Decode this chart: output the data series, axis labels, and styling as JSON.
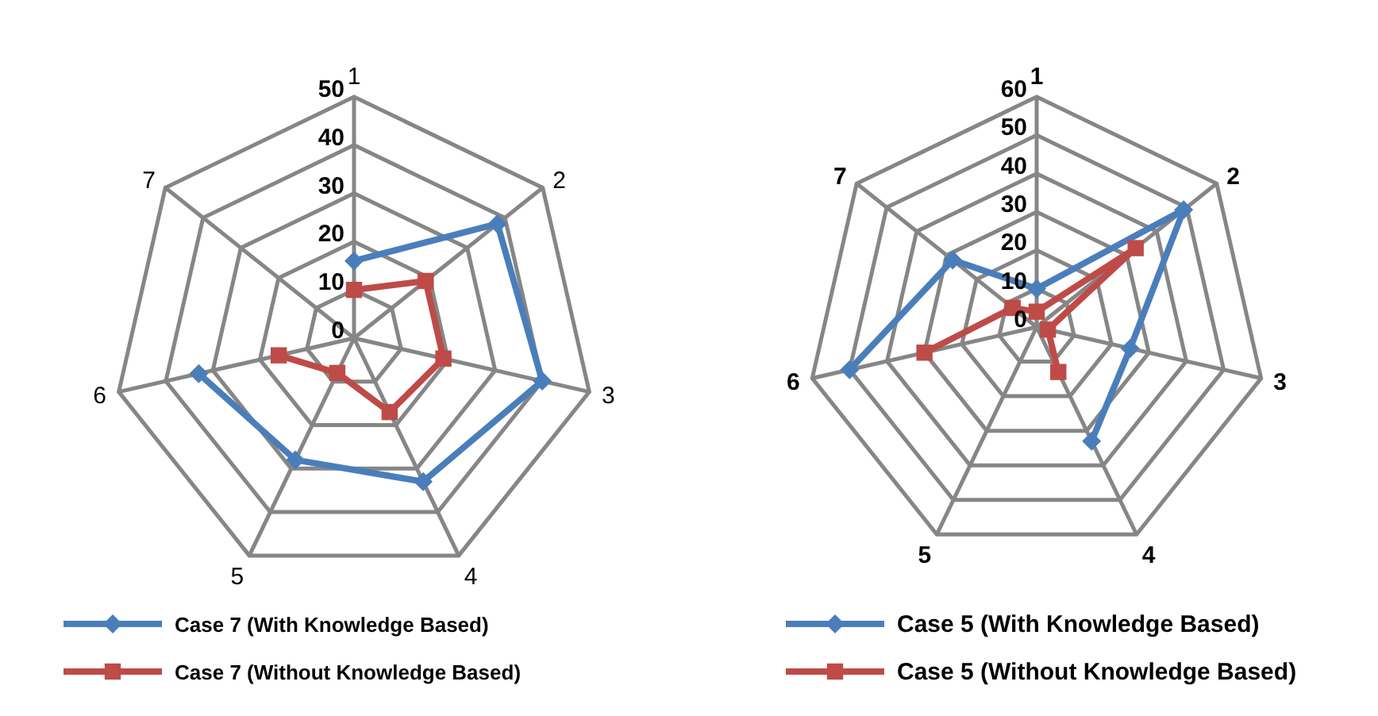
{
  "chart_data": [
    {
      "type": "radar",
      "categories": [
        "1",
        "2",
        "3",
        "4",
        "5",
        "6",
        "7"
      ],
      "ylim": [
        0,
        50
      ],
      "yticks": [
        0,
        10,
        20,
        30,
        40,
        50
      ],
      "grid": true,
      "legend": "bottom",
      "line_style": "solid",
      "series": [
        {
          "name": "Case 7 (With Knowledge Based)",
          "color": "#4a7ebb",
          "marker": "diamond",
          "values": [
            16,
            38,
            40,
            33,
            28,
            33,
            null
          ]
        },
        {
          "name": "Case 7 (Without Knowledge Based)",
          "color": "#be4b48",
          "marker": "square",
          "values": [
            10,
            19,
            19,
            17,
            8,
            16,
            null
          ]
        }
      ]
    },
    {
      "type": "radar",
      "categories": [
        "1",
        "2",
        "3",
        "4",
        "5",
        "6",
        "7"
      ],
      "ylim": [
        0,
        60
      ],
      "yticks": [
        0,
        10,
        20,
        30,
        40,
        50,
        60
      ],
      "grid": true,
      "legend": "bottom",
      "line_style": "solid",
      "series": [
        {
          "name": "Case 5 (With Knowledge Based)",
          "color": "#4a7ebb",
          "marker": "diamond",
          "values": [
            10,
            49,
            25,
            33,
            null,
            50,
            28
          ]
        },
        {
          "name": "Case 5 (Without Knowledge Based)",
          "color": "#be4b48",
          "marker": "square",
          "values": [
            4,
            33,
            3,
            13,
            null,
            30,
            8
          ]
        }
      ]
    }
  ]
}
